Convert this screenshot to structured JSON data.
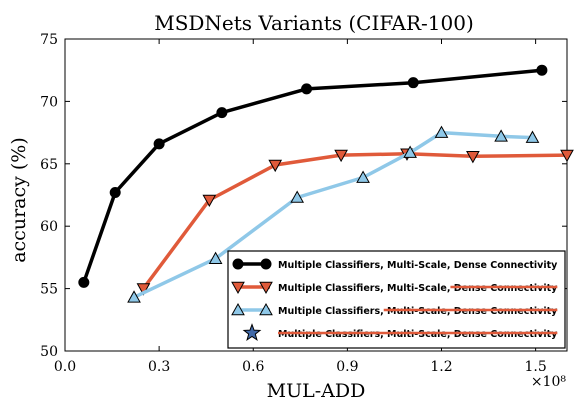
{
  "chart_data": {
    "type": "line",
    "title": "MSDNets Variants (CIFAR-100)",
    "xlabel": "MUL-ADD",
    "ylabel": "accuracy (%)",
    "x_multiplier": "×10⁸",
    "xlim": [
      0.0,
      1.6
    ],
    "ylim": [
      50,
      75
    ],
    "x_ticks": [
      "0.0",
      "0.3",
      "0.6",
      "0.9",
      "1.2",
      "1.5"
    ],
    "y_ticks": [
      "50",
      "55",
      "60",
      "65",
      "70",
      "75"
    ],
    "grid": false,
    "legend_position": "lower-right",
    "series": [
      {
        "name": "Multiple Classifiers, Multi-Scale, Dense Connectivity",
        "color": "#000000",
        "marker": "circle",
        "x": [
          0.06,
          0.16,
          0.3,
          0.5,
          0.77,
          1.11,
          1.52
        ],
        "y": [
          55.5,
          62.7,
          66.6,
          69.1,
          71.0,
          71.5,
          72.5
        ]
      },
      {
        "name": "Multiple Classifiers, Multi-Scale, Dense Connectivity",
        "strike": "Dense Connectivity",
        "color": "#e05a3a",
        "marker": "triangle-down",
        "x": [
          0.25,
          0.46,
          0.67,
          0.88,
          1.09,
          1.3,
          1.6
        ],
        "y": [
          55.0,
          62.1,
          64.9,
          65.7,
          65.8,
          65.6,
          65.7
        ]
      },
      {
        "name": "Multiple Classifiers, Multi-Scale, Dense Connectivity",
        "strike": "Multi-Scale, Dense Connectivity",
        "color": "#8fc8e8",
        "marker": "triangle-up",
        "x": [
          0.22,
          0.48,
          0.74,
          0.95,
          1.1,
          1.2,
          1.39,
          1.49
        ],
        "y": [
          54.3,
          57.4,
          62.3,
          63.9,
          65.9,
          67.5,
          67.2,
          67.1
        ]
      },
      {
        "name": "Multiple Classifiers, Multi-Scale, Dense Connectivity",
        "strike": "Multiple Classifiers, Multi-Scale, Dense Connectivity",
        "color": "#e05a3a",
        "marker": "star",
        "x": [],
        "y": []
      }
    ]
  }
}
